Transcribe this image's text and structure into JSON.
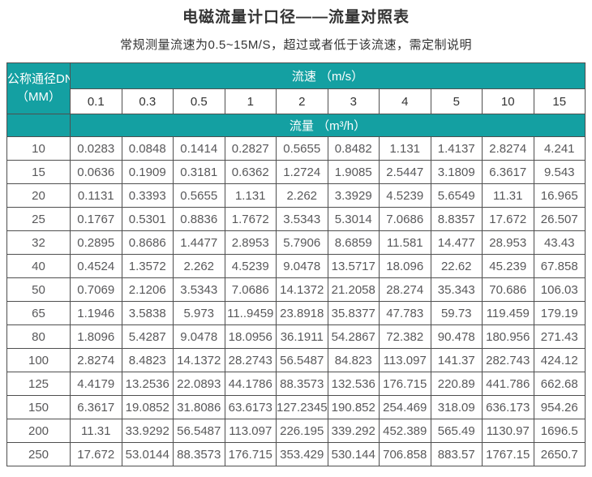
{
  "page": {
    "title": "电磁流量计口径——流量对照表",
    "subtitle": "常规测量流速为0.5~15M/S，超过或者低于该流速，需定制说明"
  },
  "colors": {
    "header_teal": "#14A0A2",
    "border": "#4F4F4F",
    "title_text": "#333333",
    "data_text": "#58585A",
    "text_on_teal": "#FFFFFF"
  },
  "table": {
    "corner_header_line1": "公称通径DN",
    "corner_header_line2": "（MM）",
    "velocity_header": "流速 （m/s）",
    "flow_header": "流量 （m³/h）",
    "velocity_columns": [
      "0.1",
      "0.3",
      "0.5",
      "1",
      "2",
      "3",
      "4",
      "5",
      "10",
      "15"
    ],
    "rows": [
      {
        "dn": "10",
        "values": [
          "0.0283",
          "0.0848",
          "0.1414",
          "0.2827",
          "0.5655",
          "0.8482",
          "1.131",
          "1.4137",
          "2.8274",
          "4.241"
        ]
      },
      {
        "dn": "15",
        "values": [
          "0.0636",
          "0.1909",
          "0.3181",
          "0.6362",
          "1.2724",
          "1.9085",
          "2.5447",
          "3.1809",
          "6.3617",
          "9.543"
        ]
      },
      {
        "dn": "20",
        "values": [
          "0.1131",
          "0.3393",
          "0.5655",
          "1.131",
          "2.262",
          "3.3929",
          "4.5239",
          "5.6549",
          "11.31",
          "16.965"
        ]
      },
      {
        "dn": "25",
        "values": [
          "0.1767",
          "0.5301",
          "0.8836",
          "1.7672",
          "3.5343",
          "5.3014",
          "7.0686",
          "8.8357",
          "17.672",
          "26.507"
        ]
      },
      {
        "dn": "32",
        "values": [
          "0.2895",
          "0.8686",
          "1.4477",
          "2.8953",
          "5.7906",
          "8.6859",
          "11.581",
          "14.477",
          "28.953",
          "43.43"
        ]
      },
      {
        "dn": "40",
        "values": [
          "0.4524",
          "1.3572",
          "2.262",
          "4.5239",
          "9.0478",
          "13.5717",
          "18.096",
          "22.62",
          "45.239",
          "67.858"
        ]
      },
      {
        "dn": "50",
        "values": [
          "0.7069",
          "2.1206",
          "3.5343",
          "7.0686",
          "14.1372",
          "21.2058",
          "28.274",
          "35.343",
          "70.686",
          "106.03"
        ]
      },
      {
        "dn": "65",
        "values": [
          "1.1946",
          "3.5838",
          "5.973",
          "11..9459",
          "23.8918",
          "35.8377",
          "47.783",
          "59.73",
          "119.459",
          "179.19"
        ]
      },
      {
        "dn": "80",
        "values": [
          "1.8096",
          "5.4287",
          "9.0478",
          "18.0956",
          "36.1911",
          "54.2867",
          "72.382",
          "90.478",
          "180.956",
          "271.43"
        ]
      },
      {
        "dn": "100",
        "values": [
          "2.8274",
          "8.4823",
          "14.1372",
          "28.2743",
          "56.5487",
          "84.823",
          "113.097",
          "141.37",
          "282.743",
          "424.12"
        ]
      },
      {
        "dn": "125",
        "values": [
          "4.4179",
          "13.2536",
          "22.0893",
          "44.1786",
          "88.3573",
          "132.536",
          "176.715",
          "220.89",
          "441.786",
          "662.68"
        ]
      },
      {
        "dn": "150",
        "values": [
          "6.3617",
          "19.0852",
          "31.8086",
          "63.6173",
          "127.2345",
          "190.852",
          "254.469",
          "318.09",
          "636.173",
          "954.26"
        ]
      },
      {
        "dn": "200",
        "values": [
          "11.31",
          "33.9292",
          "56.5487",
          "113.097",
          "226.195",
          "339.292",
          "452.389",
          "565.49",
          "1130.97",
          "1696.5"
        ]
      },
      {
        "dn": "250",
        "values": [
          "17.672",
          "53.0144",
          "88.3573",
          "176.715",
          "353.429",
          "530.144",
          "706.858",
          "883.57",
          "1767.15",
          "2650.7"
        ]
      }
    ]
  },
  "chart_data": {
    "type": "table",
    "title": "电磁流量计口径——流量对照表",
    "columns_label": "流速 （m/s）",
    "rows_label": "公称通径DN（MM）",
    "values_label": "流量 （m³/h）",
    "columns": [
      0.1,
      0.3,
      0.5,
      1,
      2,
      3,
      4,
      5,
      10,
      15
    ],
    "row_keys": [
      10,
      15,
      20,
      25,
      32,
      40,
      50,
      65,
      80,
      100,
      125,
      150,
      200,
      250
    ]
  }
}
